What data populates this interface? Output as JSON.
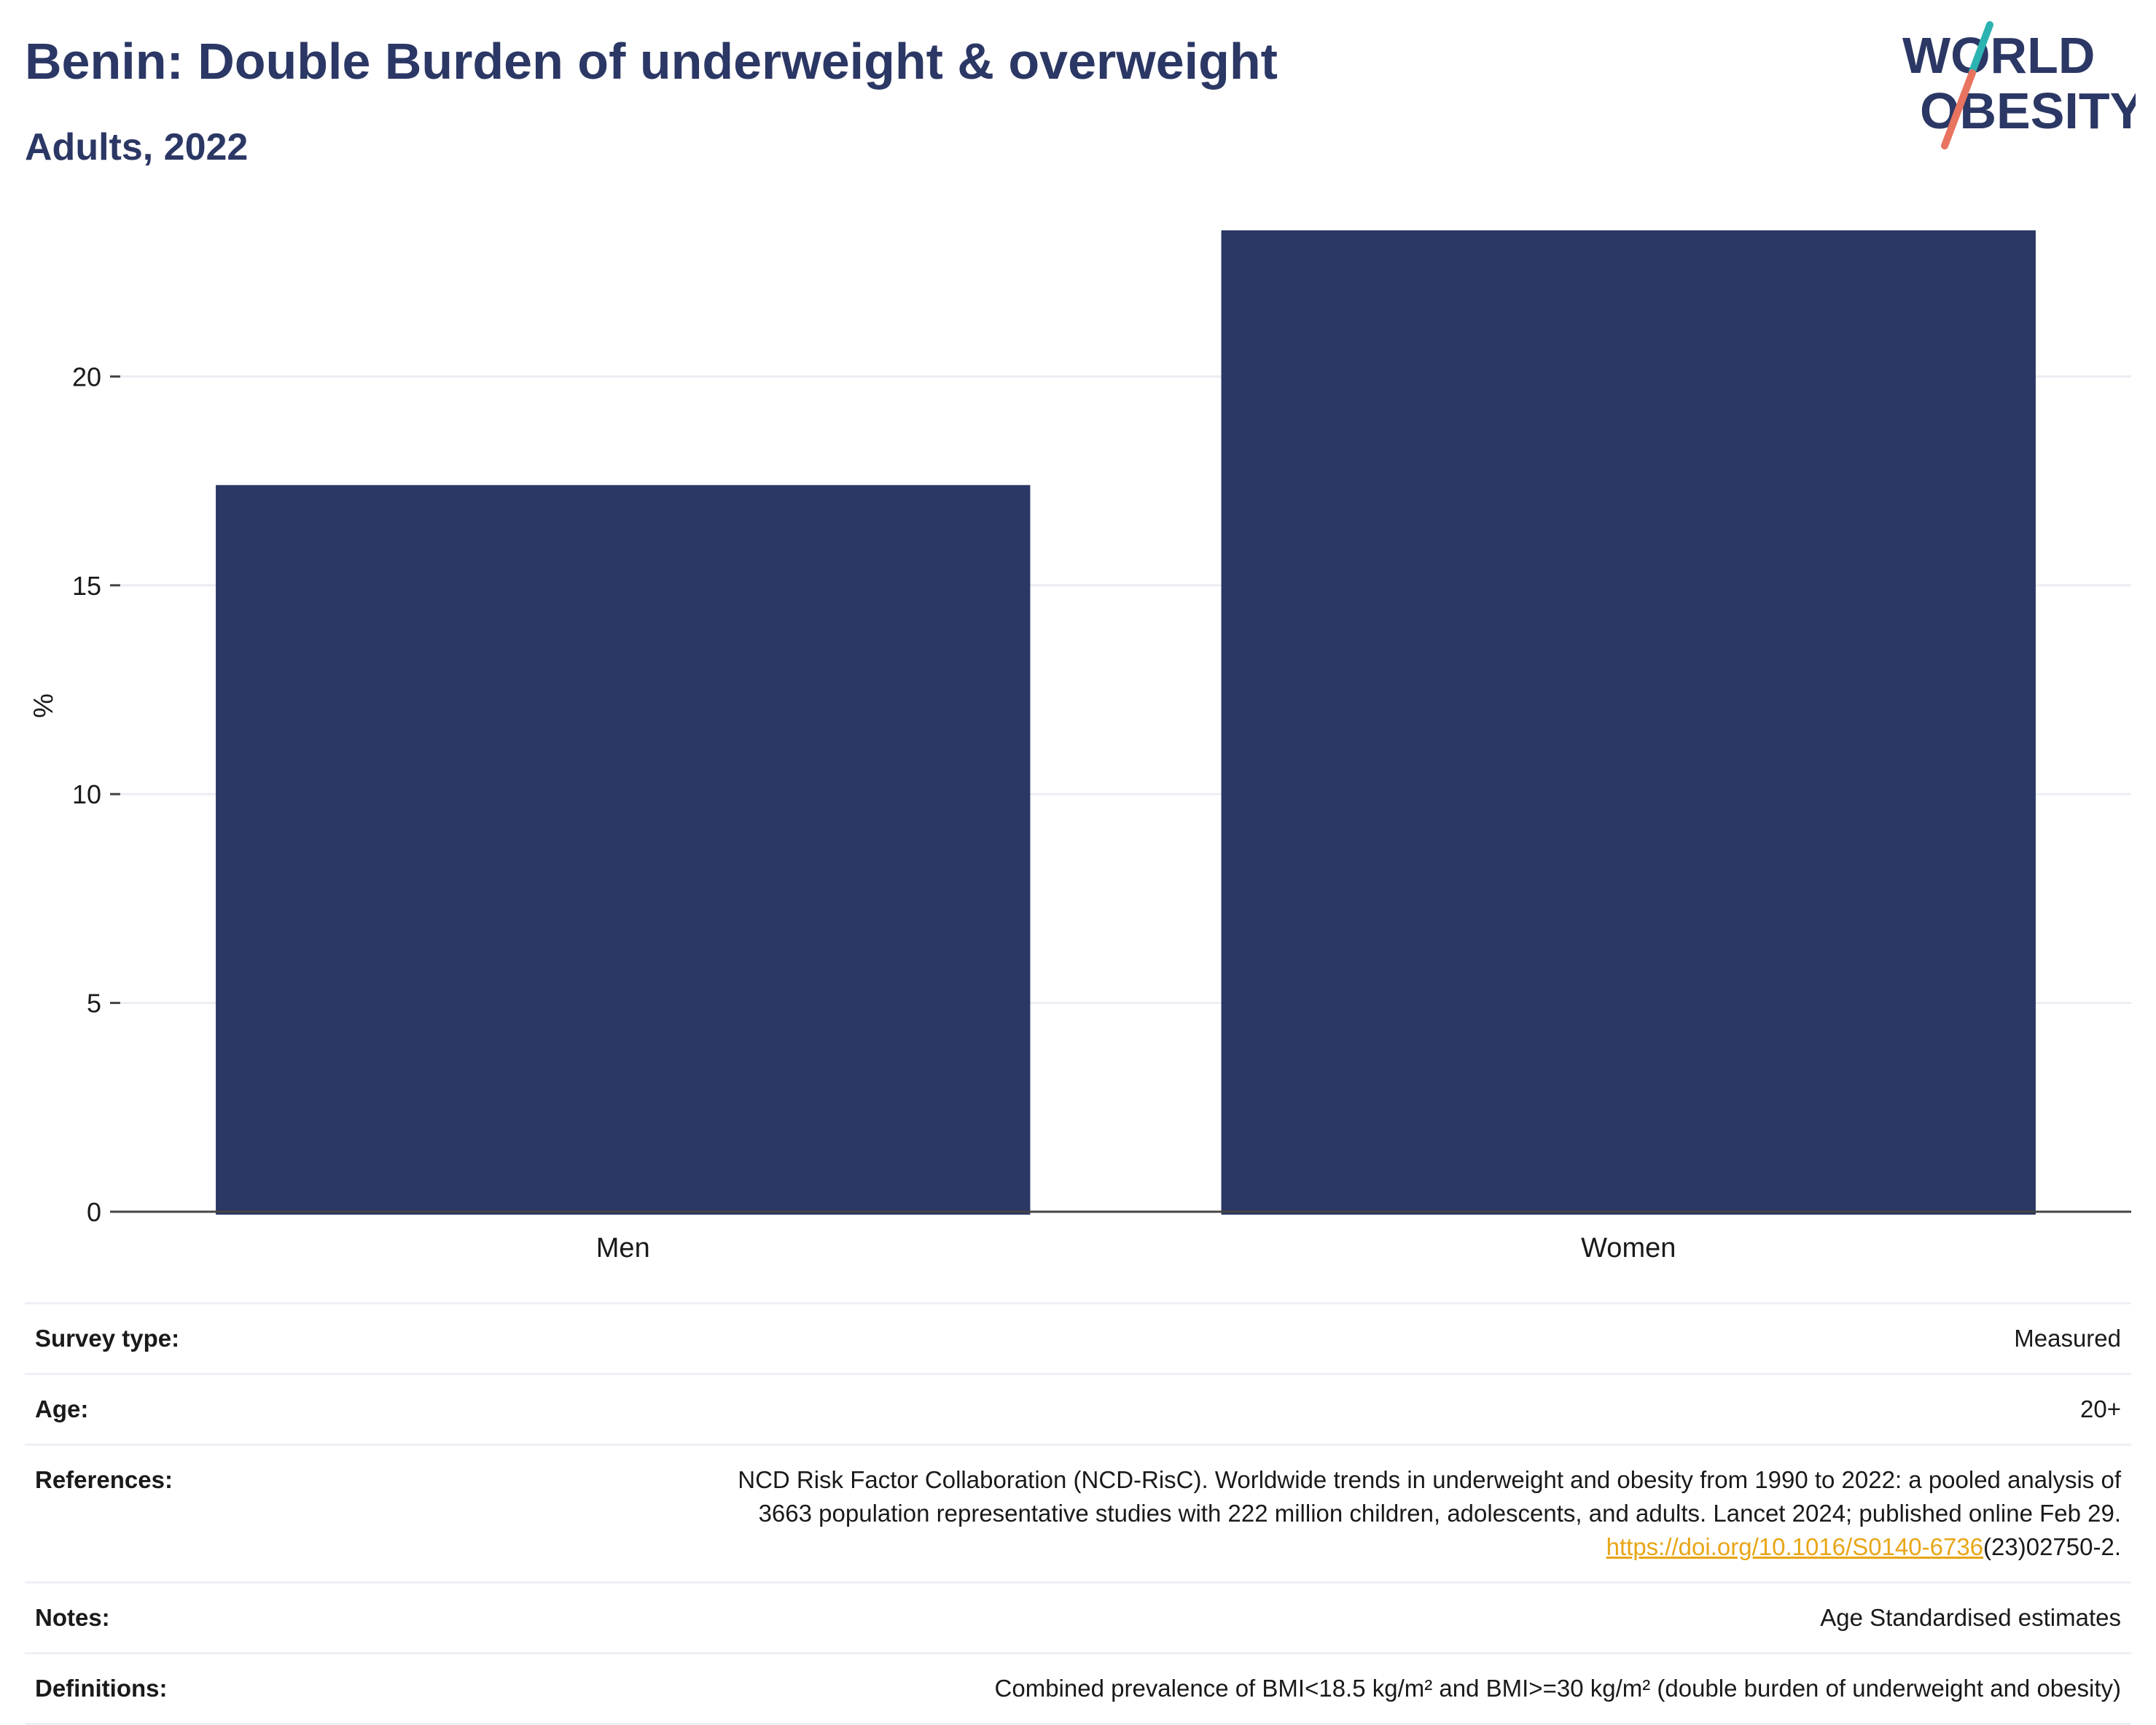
{
  "header": {
    "title": "Benin: Double Burden of underweight & overweight",
    "subtitle": "Adults, 2022",
    "logo_line1": "WORLD",
    "logo_line2": "OBESITY"
  },
  "colors": {
    "bar": "#2b3764",
    "title": "#2b3764",
    "link": "#e8a516",
    "logo_teal": "#2bb3b1",
    "logo_coral": "#e8735f"
  },
  "chart_data": {
    "type": "bar",
    "categories": [
      "Men",
      "Women"
    ],
    "values": [
      17.4,
      23.5
    ],
    "ylabel": "%",
    "xlabel": "",
    "yticks": [
      0,
      5,
      10,
      15,
      20
    ],
    "ylim": [
      0,
      25
    ],
    "grid": true
  },
  "info": {
    "survey_type_label": "Survey type:",
    "survey_type_value": "Measured",
    "age_label": "Age:",
    "age_value": "20+",
    "references_label": "References:",
    "references_line1": "NCD Risk Factor Collaboration (NCD-RisC). Worldwide trends in underweight and obesity from 1990 to 2022: a pooled analysis of",
    "references_line2": "3663 population representative studies with 222 million children, adolescents, and adults. Lancet 2024; published online Feb 29.",
    "references_link": "https://doi.org/10.1016/S0140-6736",
    "references_suffix": "(23)02750-2.",
    "notes_label": "Notes:",
    "notes_value": "Age Standardised estimates",
    "definitions_label": "Definitions:",
    "definitions_value": "Combined prevalence of BMI<18.5 kg/m² and BMI>=30 kg/m² (double burden of underweight and obesity)"
  }
}
